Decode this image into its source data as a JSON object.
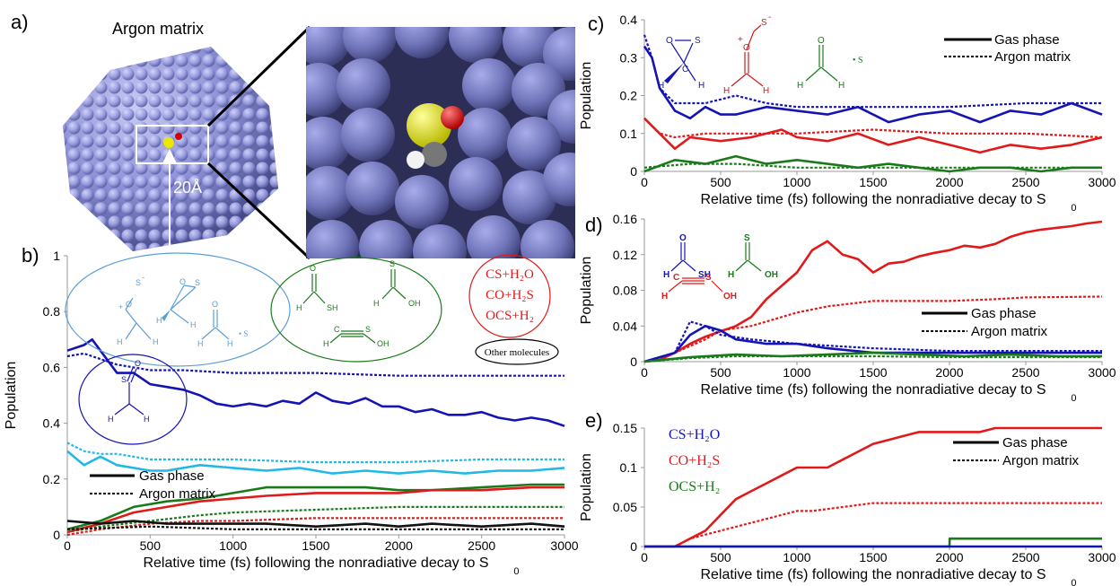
{
  "panels": {
    "a": "a)",
    "b": "b)",
    "c": "c)",
    "d": "d)",
    "e": "e)"
  },
  "panel_a": {
    "title": "Argon matrix",
    "scale_label": "20Å"
  },
  "legend": {
    "gas": "Gas phase",
    "argon": "Argon matrix"
  },
  "molecule_labels": {
    "sh": "SH",
    "oh": "OH",
    "h": "H",
    "c": "C",
    "o": "O",
    "s": "S",
    "s_dot": "• S",
    "plus": "+",
    "minus": "-",
    "other_molecules": "Other molecules"
  },
  "products": {
    "cs_h2o": "CS+H₂O",
    "co_h2s": "CO+H₂S",
    "ocs_h2": "OCS+H₂"
  },
  "chart_data": [
    {
      "id": "b",
      "type": "line",
      "xlabel": "Relative time (fs) following the nonradiative decay to S",
      "xlabel_sub": "0",
      "ylabel": "Population",
      "xlim": [
        0,
        3000
      ],
      "ylim": [
        0,
        1
      ],
      "xticks": [
        0,
        500,
        1000,
        1500,
        2000,
        2500,
        3000
      ],
      "yticks": [
        0,
        0.2,
        0.4,
        0.6,
        0.8,
        1
      ],
      "ytick_labels": [
        "0",
        "0.2",
        "0.4",
        "0.6",
        "0.8",
        "1"
      ],
      "colors": {
        "darkblue": "#1414b4",
        "lightblue": "#22b8e6",
        "green": "#1a7a1a",
        "red": "#e01a1a",
        "black": "#111111"
      },
      "series": [
        {
          "color": "darkblue",
          "style": "solid",
          "x": [
            0,
            100,
            150,
            200,
            300,
            400,
            500,
            600,
            700,
            800,
            900,
            1000,
            1100,
            1200,
            1300,
            1400,
            1500,
            1600,
            1700,
            1800,
            1900,
            2000,
            2100,
            2200,
            2300,
            2400,
            2500,
            2600,
            2700,
            2800,
            2900,
            3000
          ],
          "y": [
            0.66,
            0.68,
            0.7,
            0.66,
            0.58,
            0.58,
            0.54,
            0.53,
            0.52,
            0.5,
            0.47,
            0.46,
            0.47,
            0.46,
            0.48,
            0.47,
            0.51,
            0.48,
            0.47,
            0.49,
            0.46,
            0.46,
            0.44,
            0.45,
            0.43,
            0.43,
            0.44,
            0.42,
            0.41,
            0.42,
            0.41,
            0.39
          ]
        },
        {
          "color": "darkblue",
          "style": "dashed",
          "x": [
            0,
            100,
            200,
            300,
            400,
            500,
            700,
            1000,
            1500,
            2000,
            2500,
            3000
          ],
          "y": [
            0.64,
            0.65,
            0.63,
            0.61,
            0.6,
            0.59,
            0.59,
            0.58,
            0.58,
            0.57,
            0.57,
            0.57
          ]
        },
        {
          "color": "lightblue",
          "style": "solid",
          "x": [
            0,
            100,
            200,
            300,
            400,
            500,
            600,
            800,
            1000,
            1200,
            1400,
            1600,
            1800,
            2000,
            2200,
            2400,
            2600,
            2800,
            3000
          ],
          "y": [
            0.3,
            0.25,
            0.28,
            0.25,
            0.24,
            0.23,
            0.23,
            0.25,
            0.24,
            0.23,
            0.24,
            0.22,
            0.23,
            0.22,
            0.23,
            0.22,
            0.23,
            0.23,
            0.24
          ]
        },
        {
          "color": "lightblue",
          "style": "dashed",
          "x": [
            0,
            100,
            200,
            300,
            500,
            800,
            1000,
            1500,
            2000,
            2500,
            3000
          ],
          "y": [
            0.33,
            0.3,
            0.29,
            0.29,
            0.27,
            0.27,
            0.27,
            0.26,
            0.26,
            0.27,
            0.27
          ]
        },
        {
          "color": "green",
          "style": "solid",
          "x": [
            0,
            200,
            400,
            600,
            800,
            1000,
            1200,
            1500,
            1800,
            2000,
            2200,
            2500,
            2800,
            3000
          ],
          "y": [
            0.02,
            0.05,
            0.1,
            0.12,
            0.13,
            0.15,
            0.17,
            0.17,
            0.17,
            0.16,
            0.16,
            0.17,
            0.18,
            0.18
          ]
        },
        {
          "color": "green",
          "style": "dashed",
          "x": [
            0,
            200,
            500,
            800,
            1000,
            1500,
            2000,
            2500,
            3000
          ],
          "y": [
            0.01,
            0.03,
            0.05,
            0.07,
            0.08,
            0.09,
            0.1,
            0.1,
            0.1
          ]
        },
        {
          "color": "red",
          "style": "solid",
          "x": [
            0,
            200,
            400,
            600,
            800,
            1000,
            1200,
            1500,
            1800,
            2000,
            2200,
            2500,
            2800,
            3000
          ],
          "y": [
            0.01,
            0.04,
            0.08,
            0.1,
            0.12,
            0.13,
            0.14,
            0.15,
            0.15,
            0.15,
            0.16,
            0.16,
            0.17,
            0.17
          ]
        },
        {
          "color": "red",
          "style": "dashed",
          "x": [
            0,
            200,
            500,
            800,
            1000,
            1500,
            2000,
            2500,
            3000
          ],
          "y": [
            0.0,
            0.02,
            0.04,
            0.05,
            0.05,
            0.06,
            0.06,
            0.06,
            0.06
          ]
        },
        {
          "color": "black",
          "style": "solid",
          "x": [
            0,
            200,
            400,
            600,
            800,
            1000,
            1200,
            1500,
            1800,
            2000,
            2200,
            2500,
            2800,
            3000
          ],
          "y": [
            0.05,
            0.04,
            0.05,
            0.04,
            0.04,
            0.04,
            0.04,
            0.03,
            0.04,
            0.03,
            0.04,
            0.03,
            0.04,
            0.03
          ]
        },
        {
          "color": "black",
          "style": "dashed",
          "x": [
            0,
            500,
            1000,
            1500,
            2000,
            2500,
            3000
          ],
          "y": [
            0.02,
            0.03,
            0.02,
            0.02,
            0.02,
            0.02,
            0.02
          ]
        }
      ]
    },
    {
      "id": "c",
      "type": "line",
      "xlabel": "Relative time (fs) following the nonradiative decay to S",
      "xlabel_sub": "0",
      "ylabel": "Population",
      "xlim": [
        0,
        3000
      ],
      "ylim": [
        0,
        0.4
      ],
      "xticks": [
        0,
        500,
        1000,
        1500,
        2000,
        2500,
        3000
      ],
      "yticks": [
        0,
        0.1,
        0.2,
        0.3,
        0.4
      ],
      "ytick_labels": [
        "0",
        "0.1",
        "0.2",
        "0.3",
        "0.4"
      ],
      "series": [
        {
          "color": "darkblue",
          "style": "solid",
          "x": [
            0,
            50,
            100,
            200,
            300,
            400,
            500,
            600,
            800,
            1000,
            1200,
            1400,
            1600,
            1800,
            2000,
            2200,
            2400,
            2600,
            2800,
            3000
          ],
          "y": [
            0.33,
            0.3,
            0.22,
            0.16,
            0.14,
            0.17,
            0.15,
            0.15,
            0.17,
            0.16,
            0.15,
            0.17,
            0.13,
            0.15,
            0.16,
            0.13,
            0.16,
            0.15,
            0.18,
            0.15
          ]
        },
        {
          "color": "darkblue",
          "style": "dashed",
          "x": [
            0,
            50,
            100,
            200,
            400,
            600,
            800,
            1000,
            1500,
            2000,
            2500,
            3000
          ],
          "y": [
            0.36,
            0.3,
            0.22,
            0.18,
            0.18,
            0.2,
            0.18,
            0.17,
            0.17,
            0.17,
            0.18,
            0.18
          ]
        },
        {
          "color": "red",
          "style": "solid",
          "x": [
            0,
            100,
            200,
            300,
            500,
            700,
            900,
            1000,
            1200,
            1400,
            1600,
            1800,
            2000,
            2200,
            2400,
            2600,
            2800,
            3000
          ],
          "y": [
            0.14,
            0.1,
            0.06,
            0.09,
            0.08,
            0.09,
            0.11,
            0.09,
            0.08,
            0.1,
            0.07,
            0.09,
            0.07,
            0.05,
            0.07,
            0.06,
            0.07,
            0.09
          ]
        },
        {
          "color": "red",
          "style": "dashed",
          "x": [
            0,
            100,
            200,
            400,
            600,
            800,
            1000,
            1500,
            2000,
            2500,
            3000
          ],
          "y": [
            0.14,
            0.1,
            0.09,
            0.1,
            0.1,
            0.1,
            0.1,
            0.11,
            0.1,
            0.1,
            0.09
          ]
        },
        {
          "color": "green",
          "style": "solid",
          "x": [
            0,
            200,
            400,
            600,
            800,
            1000,
            1200,
            1400,
            1600,
            1800,
            2000,
            2200,
            2400,
            2600,
            2800,
            3000
          ],
          "y": [
            0.0,
            0.03,
            0.02,
            0.04,
            0.02,
            0.03,
            0.02,
            0.01,
            0.02,
            0.01,
            0.0,
            0.01,
            0.01,
            0.0,
            0.01,
            0.01
          ]
        },
        {
          "color": "green",
          "style": "dashed",
          "x": [
            0,
            300,
            600,
            1000,
            1500,
            2000,
            2500,
            3000
          ],
          "y": [
            0.01,
            0.02,
            0.02,
            0.01,
            0.01,
            0.01,
            0.01,
            0.01
          ]
        }
      ]
    },
    {
      "id": "d",
      "type": "line",
      "xlabel": "Relative time (fs) following the nonradiative decay to S",
      "xlabel_sub": "0",
      "ylabel": "Population",
      "xlim": [
        0,
        3000
      ],
      "ylim": [
        0,
        0.16
      ],
      "xticks": [
        0,
        500,
        1000,
        1500,
        2000,
        2500,
        3000
      ],
      "yticks": [
        0,
        0.04,
        0.08,
        0.12,
        0.16
      ],
      "ytick_labels": [
        "0",
        "0.04",
        "0.08",
        "0.12",
        "0.16"
      ],
      "series": [
        {
          "color": "red",
          "style": "solid",
          "x": [
            0,
            100,
            200,
            300,
            400,
            500,
            600,
            700,
            800,
            900,
            1000,
            1100,
            1200,
            1300,
            1400,
            1500,
            1600,
            1700,
            1800,
            1900,
            2000,
            2100,
            2200,
            2300,
            2400,
            2500,
            2600,
            2700,
            2800,
            2900,
            3000
          ],
          "y": [
            0.0,
            0.002,
            0.01,
            0.02,
            0.028,
            0.034,
            0.04,
            0.05,
            0.07,
            0.085,
            0.1,
            0.125,
            0.135,
            0.12,
            0.115,
            0.1,
            0.11,
            0.112,
            0.118,
            0.122,
            0.125,
            0.13,
            0.128,
            0.132,
            0.14,
            0.145,
            0.148,
            0.15,
            0.152,
            0.155,
            0.157
          ]
        },
        {
          "color": "red",
          "style": "dashed",
          "x": [
            0,
            200,
            400,
            500,
            700,
            900,
            1000,
            1200,
            1500,
            2000,
            2300,
            2500,
            3000
          ],
          "y": [
            0.0,
            0.01,
            0.025,
            0.035,
            0.04,
            0.05,
            0.055,
            0.062,
            0.068,
            0.068,
            0.07,
            0.072,
            0.073
          ]
        },
        {
          "color": "darkblue",
          "style": "solid",
          "x": [
            0,
            200,
            300,
            400,
            500,
            600,
            800,
            1000,
            1200,
            1500,
            2000,
            2500,
            3000
          ],
          "y": [
            0.0,
            0.01,
            0.03,
            0.04,
            0.035,
            0.025,
            0.02,
            0.02,
            0.015,
            0.01,
            0.01,
            0.01,
            0.01
          ]
        },
        {
          "color": "darkblue",
          "style": "dashed",
          "x": [
            0,
            200,
            300,
            400,
            500,
            700,
            1000,
            1500,
            2000,
            2500,
            3000
          ],
          "y": [
            0.0,
            0.01,
            0.045,
            0.04,
            0.03,
            0.025,
            0.02,
            0.015,
            0.012,
            0.012,
            0.012
          ]
        },
        {
          "color": "green",
          "style": "solid",
          "x": [
            0,
            300,
            600,
            900,
            1200,
            1500,
            1800,
            2100,
            2400,
            2700,
            3000
          ],
          "y": [
            0.0,
            0.005,
            0.008,
            0.006,
            0.008,
            0.01,
            0.008,
            0.006,
            0.008,
            0.006,
            0.006
          ]
        },
        {
          "color": "green",
          "style": "dashed",
          "x": [
            0,
            300,
            600,
            1000,
            1500,
            2000,
            2500,
            3000
          ],
          "y": [
            0.0,
            0.004,
            0.006,
            0.006,
            0.006,
            0.005,
            0.005,
            0.005
          ]
        }
      ]
    },
    {
      "id": "e",
      "type": "line",
      "xlabel": "Relative time (fs) following the nonradiative decay to S",
      "xlabel_sub": "0",
      "ylabel": "Population",
      "xlim": [
        0,
        3000
      ],
      "ylim": [
        0,
        0.15
      ],
      "xticks": [
        0,
        500,
        1000,
        1500,
        2000,
        2500,
        3000
      ],
      "yticks": [
        0,
        0.05,
        0.1,
        0.15
      ],
      "ytick_labels": [
        "0",
        "0.05",
        "0.1",
        "0.15"
      ],
      "series": [
        {
          "color": "red",
          "style": "solid",
          "x": [
            0,
            200,
            300,
            400,
            500,
            600,
            700,
            800,
            900,
            1000,
            1100,
            1200,
            1300,
            1400,
            1500,
            1600,
            1700,
            1800,
            1900,
            2000,
            2100,
            2200,
            2300,
            2400,
            2500,
            3000
          ],
          "y": [
            0,
            0,
            0.01,
            0.02,
            0.04,
            0.06,
            0.07,
            0.08,
            0.09,
            0.1,
            0.1,
            0.1,
            0.11,
            0.12,
            0.13,
            0.135,
            0.14,
            0.145,
            0.145,
            0.145,
            0.145,
            0.145,
            0.15,
            0.15,
            0.15,
            0.15
          ]
        },
        {
          "color": "red",
          "style": "dashed",
          "x": [
            0,
            200,
            300,
            500,
            700,
            900,
            1000,
            1100,
            1300,
            1500,
            2000,
            2500,
            3000
          ],
          "y": [
            0,
            0,
            0.01,
            0.02,
            0.03,
            0.04,
            0.045,
            0.045,
            0.05,
            0.055,
            0.055,
            0.055,
            0.055
          ]
        },
        {
          "color": "green",
          "style": "solid",
          "x": [
            0,
            2000,
            2001,
            3000
          ],
          "y": [
            0,
            0,
            0.01,
            0.01
          ]
        },
        {
          "color": "darkblue",
          "style": "solid",
          "x": [
            0,
            3000
          ],
          "y": [
            0,
            0
          ]
        }
      ]
    }
  ]
}
